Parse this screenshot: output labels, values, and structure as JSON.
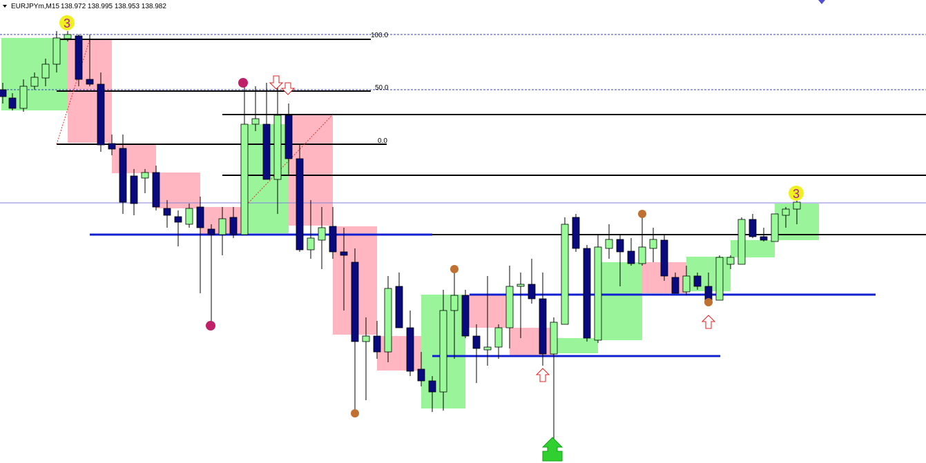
{
  "header": {
    "symbol": "EURJPYm,M15",
    "quote": "138.972 138.995 138.953 138.982"
  },
  "fib_levels": [
    "100.0",
    "50.0",
    "0.0"
  ],
  "markers": [
    "3",
    "3"
  ]
}
